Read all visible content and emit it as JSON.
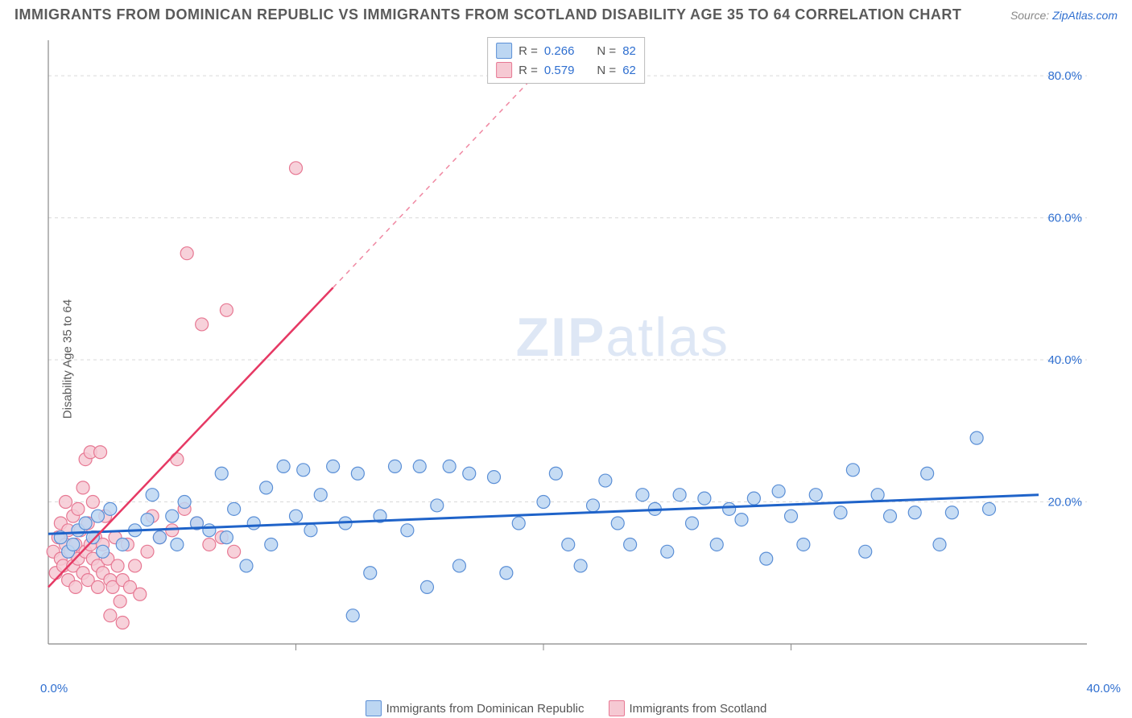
{
  "title": "IMMIGRANTS FROM DOMINICAN REPUBLIC VS IMMIGRANTS FROM SCOTLAND DISABILITY AGE 35 TO 64 CORRELATION CHART",
  "source_prefix": "Source: ",
  "source_link": "ZipAtlas.com",
  "y_axis_title": "Disability Age 35 to 64",
  "watermark_bold": "ZIP",
  "watermark_light": "atlas",
  "chart": {
    "type": "scatter",
    "background_color": "#ffffff",
    "grid_color": "#d9d9d9",
    "axis_line_color": "#888888",
    "xlim": [
      0,
      40
    ],
    "ylim": [
      0,
      85
    ],
    "y_ticks": [
      20,
      40,
      60,
      80
    ],
    "y_tick_labels": [
      "20.0%",
      "40.0%",
      "60.0%",
      "80.0%"
    ],
    "y_tick_color": "#2f6fd0",
    "x_tick_positions": [
      10,
      20,
      30
    ],
    "x_zero_label": "0.0%",
    "x_max_label": "40.0%",
    "x_label_color": "#2f6fd0",
    "tick_fontsize": 15,
    "series": [
      {
        "name": "Immigrants from Dominican Republic",
        "marker_fill": "#bcd6f2",
        "marker_stroke": "#5b8fd6",
        "marker_radius": 8,
        "trend_color": "#1f63c9",
        "trend_width": 3,
        "trend_p1": [
          0,
          15.5
        ],
        "trend_p2": [
          40,
          21
        ],
        "r_value": "0.266",
        "n_value": "82",
        "points": [
          [
            0.5,
            15
          ],
          [
            0.8,
            13
          ],
          [
            1,
            14
          ],
          [
            1.2,
            16
          ],
          [
            1.5,
            17
          ],
          [
            1.8,
            15
          ],
          [
            2,
            18
          ],
          [
            2.2,
            13
          ],
          [
            2.5,
            19
          ],
          [
            3,
            14
          ],
          [
            3.5,
            16
          ],
          [
            4,
            17.5
          ],
          [
            4.2,
            21
          ],
          [
            4.5,
            15
          ],
          [
            5,
            18
          ],
          [
            5.2,
            14
          ],
          [
            5.5,
            20
          ],
          [
            6,
            17
          ],
          [
            6.5,
            16
          ],
          [
            7,
            24
          ],
          [
            7.2,
            15
          ],
          [
            7.5,
            19
          ],
          [
            8,
            11
          ],
          [
            8.3,
            17
          ],
          [
            8.8,
            22
          ],
          [
            9,
            14
          ],
          [
            9.5,
            25
          ],
          [
            10,
            18
          ],
          [
            10.3,
            24.5
          ],
          [
            10.6,
            16
          ],
          [
            11,
            21
          ],
          [
            11.5,
            25
          ],
          [
            12,
            17
          ],
          [
            12.3,
            4
          ],
          [
            12.5,
            24
          ],
          [
            13,
            10
          ],
          [
            13.4,
            18
          ],
          [
            14,
            25
          ],
          [
            14.5,
            16
          ],
          [
            15,
            25
          ],
          [
            15.3,
            8
          ],
          [
            15.7,
            19.5
          ],
          [
            16.2,
            25
          ],
          [
            16.6,
            11
          ],
          [
            17,
            24
          ],
          [
            18,
            23.5
          ],
          [
            18.5,
            10
          ],
          [
            19,
            17
          ],
          [
            20,
            20
          ],
          [
            20.5,
            24
          ],
          [
            21,
            14
          ],
          [
            21.5,
            11
          ],
          [
            22,
            19.5
          ],
          [
            22.5,
            23
          ],
          [
            23,
            17
          ],
          [
            23.5,
            14
          ],
          [
            24,
            21
          ],
          [
            24.5,
            19
          ],
          [
            25,
            13
          ],
          [
            25.5,
            21
          ],
          [
            26,
            17
          ],
          [
            26.5,
            20.5
          ],
          [
            27,
            14
          ],
          [
            27.5,
            19
          ],
          [
            28,
            17.5
          ],
          [
            28.5,
            20.5
          ],
          [
            29,
            12
          ],
          [
            29.5,
            21.5
          ],
          [
            30,
            18
          ],
          [
            30.5,
            14
          ],
          [
            31,
            21
          ],
          [
            32,
            18.5
          ],
          [
            32.5,
            24.5
          ],
          [
            33,
            13
          ],
          [
            33.5,
            21
          ],
          [
            34,
            18
          ],
          [
            35,
            18.5
          ],
          [
            35.5,
            24
          ],
          [
            36,
            14
          ],
          [
            36.5,
            18.5
          ],
          [
            37.5,
            29
          ],
          [
            38,
            19
          ]
        ]
      },
      {
        "name": "Immigrants from Scotland",
        "marker_fill": "#f6c9d3",
        "marker_stroke": "#e77893",
        "marker_radius": 8,
        "trend_color": "#e63964",
        "trend_width": 2.5,
        "trend_dash_after_x": 11.5,
        "trend_p1": [
          0,
          8
        ],
        "trend_p2": [
          21,
          85
        ],
        "r_value": "0.579",
        "n_value": "62",
        "points": [
          [
            0.2,
            13
          ],
          [
            0.3,
            10
          ],
          [
            0.4,
            15
          ],
          [
            0.5,
            12
          ],
          [
            0.5,
            17
          ],
          [
            0.6,
            11
          ],
          [
            0.7,
            14
          ],
          [
            0.7,
            20
          ],
          [
            0.8,
            9
          ],
          [
            0.8,
            16
          ],
          [
            0.9,
            13
          ],
          [
            1,
            11
          ],
          [
            1,
            18
          ],
          [
            1.1,
            8
          ],
          [
            1.1,
            14
          ],
          [
            1.2,
            19
          ],
          [
            1.2,
            12
          ],
          [
            1.3,
            16
          ],
          [
            1.4,
            10
          ],
          [
            1.4,
            22
          ],
          [
            1.5,
            13
          ],
          [
            1.5,
            26
          ],
          [
            1.6,
            9
          ],
          [
            1.6,
            17
          ],
          [
            1.7,
            14
          ],
          [
            1.7,
            27
          ],
          [
            1.8,
            12
          ],
          [
            1.8,
            20
          ],
          [
            1.9,
            15
          ],
          [
            2,
            8
          ],
          [
            2,
            11
          ],
          [
            2.1,
            27
          ],
          [
            2.2,
            10
          ],
          [
            2.2,
            14
          ],
          [
            2.3,
            18
          ],
          [
            2.4,
            12
          ],
          [
            2.5,
            9
          ],
          [
            2.5,
            4
          ],
          [
            2.6,
            8
          ],
          [
            2.7,
            15
          ],
          [
            2.8,
            11
          ],
          [
            2.9,
            6
          ],
          [
            3,
            9
          ],
          [
            3,
            3
          ],
          [
            3.2,
            14
          ],
          [
            3.3,
            8
          ],
          [
            3.5,
            11
          ],
          [
            3.7,
            7
          ],
          [
            4,
            13
          ],
          [
            4.2,
            18
          ],
          [
            4.5,
            15
          ],
          [
            5,
            16
          ],
          [
            5.2,
            26
          ],
          [
            5.5,
            19
          ],
          [
            5.6,
            55
          ],
          [
            6,
            17
          ],
          [
            6.2,
            45
          ],
          [
            6.5,
            14
          ],
          [
            7,
            15
          ],
          [
            7.2,
            47
          ],
          [
            7.5,
            13
          ],
          [
            10,
            67
          ]
        ]
      }
    ]
  },
  "r_legend": {
    "r_label": "R =",
    "n_label": "N ="
  },
  "bottom_legend": {
    "items": [
      {
        "label": "Immigrants from Dominican Republic",
        "fill": "#bcd6f2",
        "stroke": "#5b8fd6"
      },
      {
        "label": "Immigrants from Scotland",
        "fill": "#f6c9d3",
        "stroke": "#e77893"
      }
    ]
  }
}
